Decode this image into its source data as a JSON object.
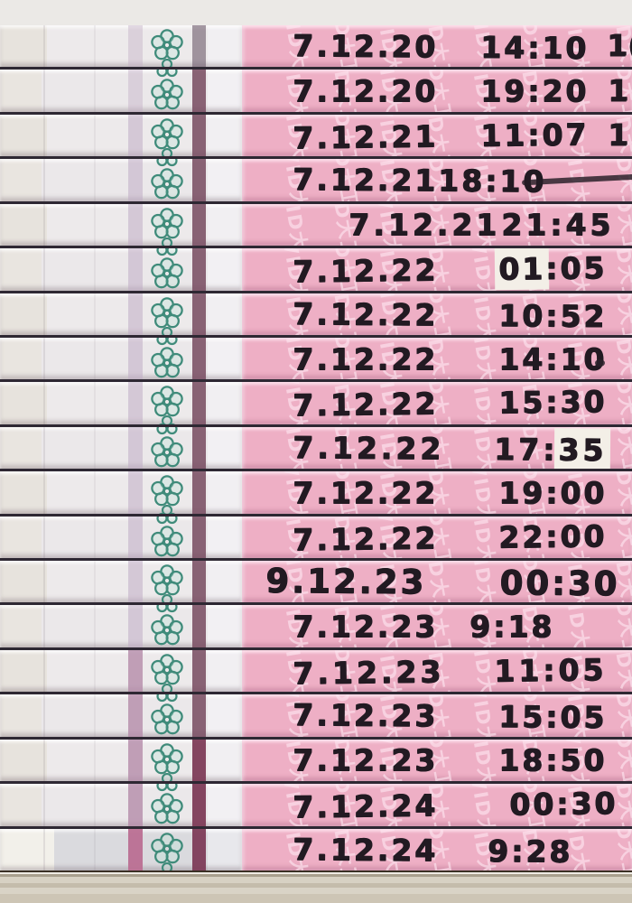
{
  "watermark": {
    "text": "DAVID大卫®"
  },
  "colors": {
    "handle_pink": "#eeafc5",
    "watermark_pink": "#fde7f1",
    "membrane_white": "#edeaeb",
    "test_line_purple": "#c0abc4",
    "control_line_maroon": "#7a4e63",
    "flower_teal": "#3f8b7a",
    "ink_black": "#221a22",
    "separator_dark": "#2e2833",
    "table_tan": "#d7d1c3",
    "background_gray": "#e9e7e3"
  },
  "strip_count": 19,
  "strips": [
    {
      "date": "7.12.20",
      "t1": "14:10",
      "p1": false,
      "t2": "",
      "p2": false,
      "edge": "1(",
      "smear": ""
    },
    {
      "date": "7.12.20",
      "t1": "19:20",
      "p1": false,
      "t2": "",
      "p2": false,
      "edge": "1",
      "smear": ""
    },
    {
      "date": "7.12.21",
      "t1": "11:07",
      "p1": false,
      "t2": "",
      "p2": false,
      "edge": "1",
      "smear": ""
    },
    {
      "date": "7.12.21",
      "t1": "18:10",
      "p1": false,
      "t2": "",
      "p2": false,
      "edge": "",
      "smear": "line"
    },
    {
      "date": "7.12.21",
      "t1": "21:45",
      "p1": false,
      "t2": "",
      "p2": false,
      "edge": "",
      "smear": ""
    },
    {
      "date": "7.12.22",
      "t1": "01",
      "p1": true,
      "t2": ":05",
      "p2": false,
      "edge": "",
      "smear": ""
    },
    {
      "date": "7.12.22",
      "t1": "10:52",
      "p1": false,
      "t2": "",
      "p2": false,
      "edge": "",
      "smear": ""
    },
    {
      "date": "7.12.22",
      "t1": "14:10",
      "p1": false,
      "t2": "",
      "p2": false,
      "edge": "",
      "smear": "dot"
    },
    {
      "date": "7.12.22",
      "t1": "15:30",
      "p1": false,
      "t2": "",
      "p2": false,
      "edge": "",
      "smear": ""
    },
    {
      "date": "7.12.22",
      "t1": "17:",
      "p1": false,
      "t2": "35",
      "p2": true,
      "edge": "",
      "smear": ""
    },
    {
      "date": "7.12.22",
      "t1": "19:00",
      "p1": false,
      "t2": "",
      "p2": false,
      "edge": "",
      "smear": ""
    },
    {
      "date": "7.12.22",
      "t1": "22:00",
      "p1": false,
      "t2": "",
      "p2": false,
      "edge": "",
      "smear": ""
    },
    {
      "date": "9.12.23",
      "t1": "00:30",
      "p1": false,
      "t2": "",
      "p2": false,
      "edge": "",
      "smear": ""
    },
    {
      "date": "7.12.23",
      "t1": "9:18",
      "p1": false,
      "t2": "",
      "p2": false,
      "edge": "",
      "smear": ""
    },
    {
      "date": "7.12.23",
      "t1": "11:05",
      "p1": false,
      "t2": "",
      "p2": false,
      "edge": "",
      "smear": ""
    },
    {
      "date": "7.12.23",
      "t1": "15:05",
      "p1": false,
      "t2": "",
      "p2": false,
      "edge": "",
      "smear": ""
    },
    {
      "date": "7.12.23",
      "t1": "18:50",
      "p1": false,
      "t2": "",
      "p2": false,
      "edge": "",
      "smear": ""
    },
    {
      "date": "7.12.24",
      "t1": "00:30",
      "p1": false,
      "t2": "",
      "p2": false,
      "edge": "",
      "smear": ""
    },
    {
      "date": "7.12.24",
      "t1": "9:28",
      "p1": false,
      "t2": "",
      "p2": false,
      "edge": "",
      "smear": ""
    }
  ]
}
